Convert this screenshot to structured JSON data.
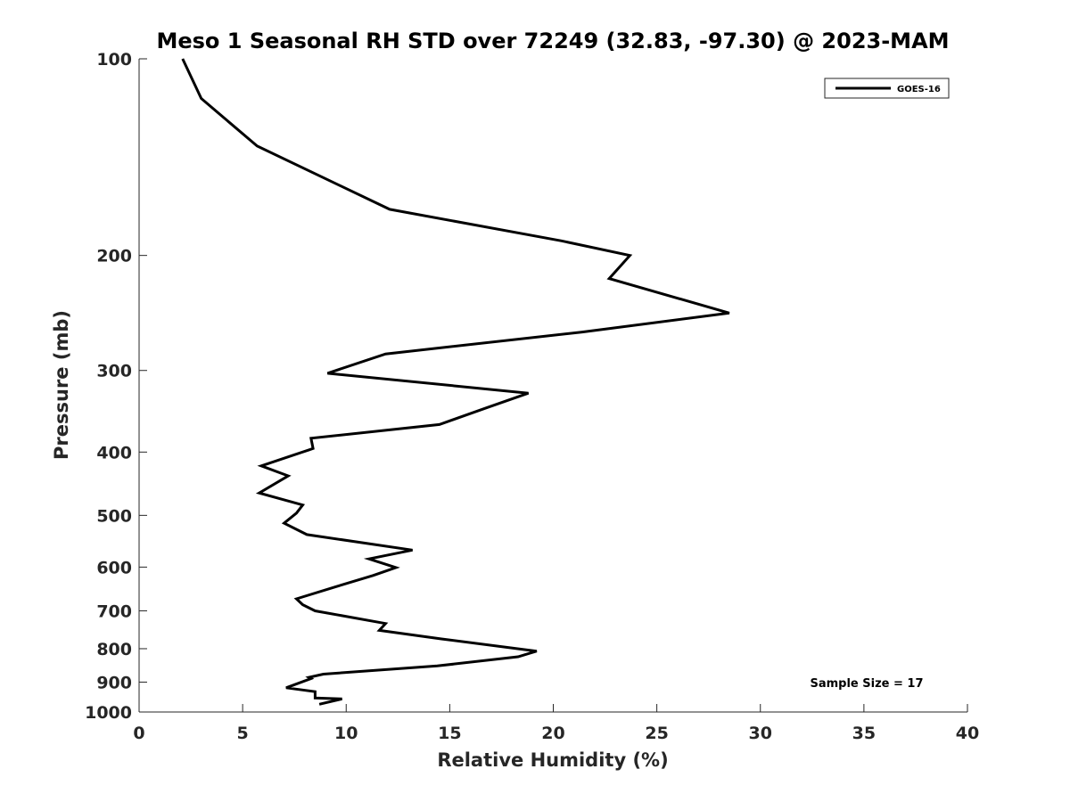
{
  "chart_data": {
    "type": "line",
    "title": "Meso 1 Seasonal RH STD over 72249 (32.83, -97.30) @ 2023-MAM",
    "xlabel": "Relative Humidity (%)",
    "ylabel": "Pressure (mb)",
    "xlim": [
      0,
      40
    ],
    "ylim": [
      100,
      1000
    ],
    "y_scale": "log",
    "y_reversed": true,
    "x_ticks": [
      0,
      5,
      10,
      15,
      20,
      25,
      30,
      35,
      40
    ],
    "x_tick_labels": [
      "0",
      "5",
      "10",
      "15",
      "20",
      "25",
      "30",
      "35",
      "40"
    ],
    "y_ticks": [
      100,
      200,
      300,
      400,
      500,
      600,
      700,
      800,
      900,
      1000
    ],
    "y_tick_labels": [
      "100",
      "200",
      "300",
      "400",
      "500",
      "600",
      "700",
      "800",
      "900",
      "1000"
    ],
    "grid": false,
    "legend_position": "top-right",
    "annotation": "Sample Size = 17",
    "colors": {
      "line": "#000000",
      "axis": "#262626"
    },
    "series": [
      {
        "name": "GOES-16",
        "x": [
          2.1,
          3.0,
          5.7,
          12.1,
          20.4,
          23.7,
          22.7,
          28.5,
          21.4,
          11.9,
          9.1,
          18.8,
          16.8,
          14.5,
          8.3,
          8.4,
          8.2,
          5.9,
          7.2,
          5.8,
          7.9,
          7.6,
          7.0,
          8.1,
          13.2,
          11.1,
          12.4,
          11.3,
          9.5,
          7.6,
          7.9,
          8.5,
          11.9,
          11.6,
          14.6,
          19.2,
          18.3,
          14.4,
          8.9,
          8.2,
          8.3,
          7.1,
          8.5,
          8.5,
          9.8,
          8.7
        ],
        "y": [
          100,
          115,
          136,
          170,
          190,
          200,
          217,
          245,
          262,
          283,
          303,
          325,
          342,
          363,
          381,
          395,
          397,
          420,
          435,
          462,
          482,
          496,
          514,
          535,
          565,
          583,
          601,
          618,
          643,
          671,
          685,
          700,
          732,
          750,
          773,
          807,
          823,
          850,
          875,
          885,
          889,
          918,
          931,
          952,
          955,
          973
        ]
      }
    ]
  }
}
